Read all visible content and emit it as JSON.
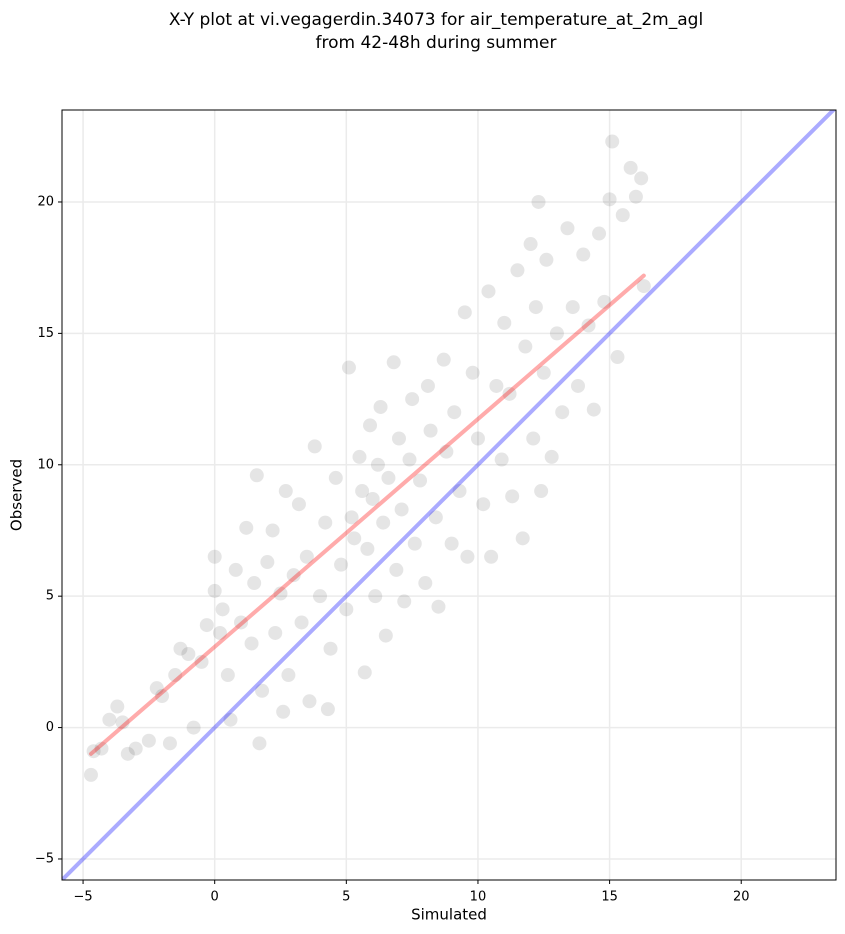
{
  "chart_data": {
    "type": "scatter",
    "title": [
      "X-Y plot at vi.vegagerdin.34073 for air_temperature_at_2m_agl",
      "from 42-48h during summer"
    ],
    "x_label": "Simulated",
    "y_label": "Observed",
    "xlim": [
      -5.8,
      23.6
    ],
    "ylim": [
      -5.8,
      23.5
    ],
    "xticks": [
      {
        "value": -5,
        "label": "−5"
      },
      0,
      5,
      10,
      15,
      20
    ],
    "yticks": [
      {
        "value": -5,
        "label": "−5"
      },
      0,
      5,
      10,
      15,
      20
    ],
    "grid": true,
    "series": [
      {
        "color": "#000000",
        "x": [
          -4.7,
          -4.6,
          -4.3,
          -4.0,
          -3.7,
          -3.5,
          -3.3,
          -3.0,
          -2.5,
          -2.2,
          -2.0,
          -1.7,
          -1.5,
          -1.3,
          -1.0,
          -0.8,
          -0.5,
          -0.3,
          0,
          0,
          0.2,
          0.3,
          0.5,
          0.6,
          0.8,
          1.0,
          1.2,
          1.4,
          1.5,
          1.6,
          1.7,
          1.8,
          2.0,
          2.2,
          2.3,
          2.5,
          2.6,
          2.7,
          2.8,
          3.0,
          3.2,
          3.3,
          3.5,
          3.6,
          3.8,
          4.0,
          4.2,
          4.3,
          4.4,
          4.6,
          4.8,
          5.0,
          5.1,
          5.2,
          5.3,
          5.5,
          5.6,
          5.7,
          5.8,
          5.9,
          6.0,
          6.1,
          6.2,
          6.3,
          6.4,
          6.5,
          6.6,
          6.8,
          6.9,
          7.0,
          7.1,
          7.2,
          7.4,
          7.5,
          7.6,
          7.8,
          8.0,
          8.1,
          8.2,
          8.4,
          8.5,
          8.7,
          8.8,
          9.0,
          9.1,
          9.3,
          9.5,
          9.6,
          9.8,
          10.0,
          10.2,
          10.4,
          10.5,
          10.7,
          10.9,
          11.0,
          11.2,
          11.3,
          11.5,
          11.7,
          11.8,
          12.0,
          12.1,
          12.2,
          12.3,
          12.4,
          12.5,
          12.6,
          12.8,
          13.0,
          13.2,
          13.4,
          13.6,
          13.8,
          14.0,
          14.2,
          14.4,
          14.6,
          14.8,
          15.0,
          15.1,
          15.3,
          15.5,
          15.8,
          16.0,
          16.2,
          16.3
        ],
        "y": [
          -1.8,
          -0.9,
          -0.8,
          0.3,
          0.8,
          0.2,
          -1.0,
          -0.8,
          -0.5,
          1.5,
          1.2,
          -0.6,
          2.0,
          3.0,
          2.8,
          0.0,
          2.5,
          3.9,
          5.2,
          6.5,
          3.6,
          4.5,
          2.0,
          0.3,
          6.0,
          4.0,
          7.6,
          3.2,
          5.5,
          9.6,
          -0.6,
          1.4,
          6.3,
          7.5,
          3.6,
          5.1,
          0.6,
          9.0,
          2.0,
          5.8,
          8.5,
          4.0,
          6.5,
          1.0,
          10.7,
          5.0,
          7.8,
          0.7,
          3.0,
          9.5,
          6.2,
          4.5,
          13.7,
          8.0,
          7.2,
          10.3,
          9.0,
          2.1,
          6.8,
          11.5,
          8.7,
          5.0,
          10.0,
          12.2,
          7.8,
          3.5,
          9.5,
          13.9,
          6.0,
          11.0,
          8.3,
          4.8,
          10.2,
          12.5,
          7.0,
          9.4,
          5.5,
          13.0,
          11.3,
          8.0,
          4.6,
          14.0,
          10.5,
          7.0,
          12.0,
          9.0,
          15.8,
          6.5,
          13.5,
          11.0,
          8.5,
          16.6,
          6.5,
          13.0,
          10.2,
          15.4,
          12.7,
          8.8,
          17.4,
          7.2,
          14.5,
          18.4,
          11.0,
          16.0,
          20.0,
          9.0,
          13.5,
          17.8,
          10.3,
          15.0,
          12.0,
          19.0,
          16.0,
          13.0,
          18.0,
          15.3,
          12.1,
          18.8,
          16.2,
          20.1,
          22.3,
          14.1,
          19.5,
          21.3,
          20.2,
          20.9,
          16.8
        ]
      },
      {
        "color": "#ff0000",
        "x": [
          -4.7,
          16.3
        ],
        "y": [
          -1.0,
          17.2
        ]
      },
      {
        "color": "#0000ff",
        "x": [
          -5.8,
          23.6
        ],
        "y": [
          -5.8,
          23.6
        ]
      }
    ]
  }
}
